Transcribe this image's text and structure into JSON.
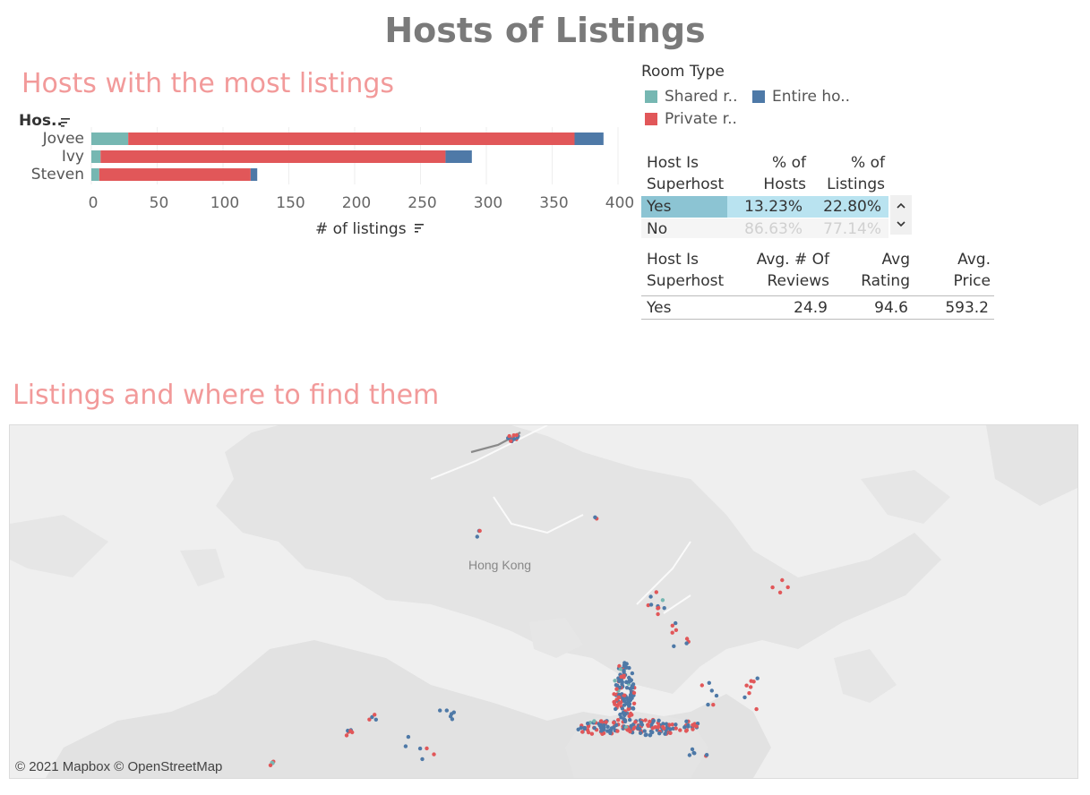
{
  "header": {
    "title": "Hosts of Listings"
  },
  "bar_section": {
    "title": "Hosts with the most listings"
  },
  "chart_data": {
    "type": "bar",
    "orientation": "horizontal",
    "stacked": true,
    "categories": [
      "Jovee",
      "Ivy",
      "Steven"
    ],
    "series": [
      {
        "name": "Shared r..",
        "color": "#76b7b2",
        "values": [
          28,
          7,
          6
        ]
      },
      {
        "name": "Private r..",
        "color": "#e15759",
        "values": [
          339,
          262,
          115
        ]
      },
      {
        "name": "Entire ho..",
        "color": "#4e79a7",
        "values": [
          22,
          20,
          5
        ]
      }
    ],
    "xlabel": "# of listings",
    "ylabel": "Hos..",
    "xlim": [
      0,
      400
    ],
    "xticks": [
      0,
      50,
      100,
      150,
      200,
      250,
      300,
      350,
      400
    ],
    "grid": true
  },
  "legend": {
    "title": "Room Type",
    "items": [
      {
        "label": "Shared r..",
        "color": "#76b7b2"
      },
      {
        "label": "Entire ho..",
        "color": "#4e79a7"
      },
      {
        "label": "Private r..",
        "color": "#e15759"
      }
    ]
  },
  "superhost_pct_table": {
    "headers": [
      [
        "Host Is",
        "Superhost"
      ],
      [
        "% of",
        "Hosts"
      ],
      [
        "% of",
        "Listings"
      ]
    ],
    "rows": [
      {
        "label": "Yes",
        "hosts": "13.23%",
        "listings": "22.80%",
        "hosts_fraction": 0.1323
      },
      {
        "label": "No",
        "hosts": "86.63%",
        "listings": "77.14%",
        "hosts_fraction": 0.8663
      }
    ]
  },
  "superhost_stats_table": {
    "headers": [
      [
        "Host Is",
        "Superhost"
      ],
      [
        "Avg. # Of",
        "Reviews"
      ],
      [
        "Avg",
        "Rating"
      ],
      [
        "Avg.",
        "Price"
      ]
    ],
    "rows": [
      {
        "label": "Yes",
        "reviews": "24.9",
        "rating": "94.6",
        "price": "593.2"
      }
    ]
  },
  "map_section": {
    "title": "Listings and where to find them",
    "place_label": "Hong Kong",
    "credit": "© 2021 Mapbox © OpenStreetMap",
    "colors": {
      "entire": "#4e79a7",
      "private": "#e15759",
      "shared": "#76b7b2"
    }
  },
  "icons": {
    "sort": "sort-icon",
    "up": "chevron-up-icon",
    "down": "chevron-down-icon"
  }
}
